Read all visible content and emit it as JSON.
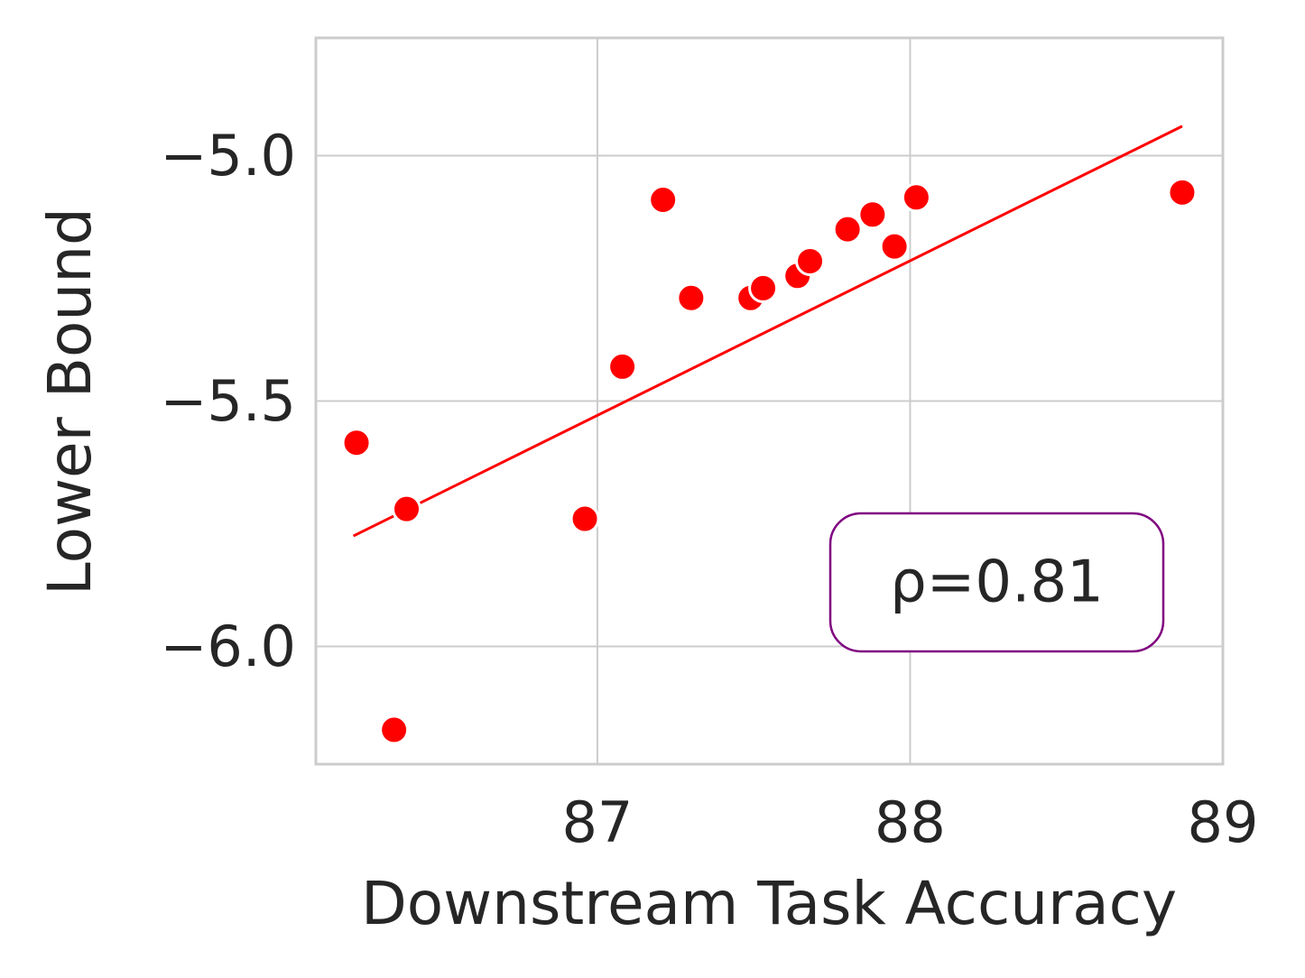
{
  "chart_data": {
    "type": "scatter",
    "xlabel": "Downstream Task Accuracy",
    "ylabel": "Lower Bound",
    "xlim": [
      86.1,
      89.0
    ],
    "ylim": [
      -6.24,
      -4.76
    ],
    "xticks": [
      87,
      88,
      89
    ],
    "xtick_labels": [
      "87",
      "88",
      "89"
    ],
    "yticks": [
      -5.0,
      -5.5,
      -6.0
    ],
    "ytick_labels": [
      "−5.0",
      "−5.5",
      "−6.0"
    ],
    "grid": true,
    "point_color": "#ff0000",
    "line_color": "#ff0000",
    "annotation_border_color": "#800080",
    "points": [
      {
        "x": 86.23,
        "y": -5.585
      },
      {
        "x": 86.35,
        "y": -6.17
      },
      {
        "x": 86.39,
        "y": -5.72
      },
      {
        "x": 86.96,
        "y": -5.74
      },
      {
        "x": 87.08,
        "y": -5.43
      },
      {
        "x": 87.21,
        "y": -5.09
      },
      {
        "x": 87.3,
        "y": -5.29
      },
      {
        "x": 87.49,
        "y": -5.29
      },
      {
        "x": 87.53,
        "y": -5.27
      },
      {
        "x": 87.64,
        "y": -5.245
      },
      {
        "x": 87.68,
        "y": -5.215
      },
      {
        "x": 87.8,
        "y": -5.15
      },
      {
        "x": 87.88,
        "y": -5.12
      },
      {
        "x": 87.95,
        "y": -5.185
      },
      {
        "x": 88.02,
        "y": -5.085
      },
      {
        "x": 88.87,
        "y": -5.075
      }
    ],
    "fit_line": {
      "x": [
        86.22,
        88.87
      ],
      "y": [
        -5.775,
        -4.94
      ]
    },
    "annotation": "ρ=0.81"
  }
}
